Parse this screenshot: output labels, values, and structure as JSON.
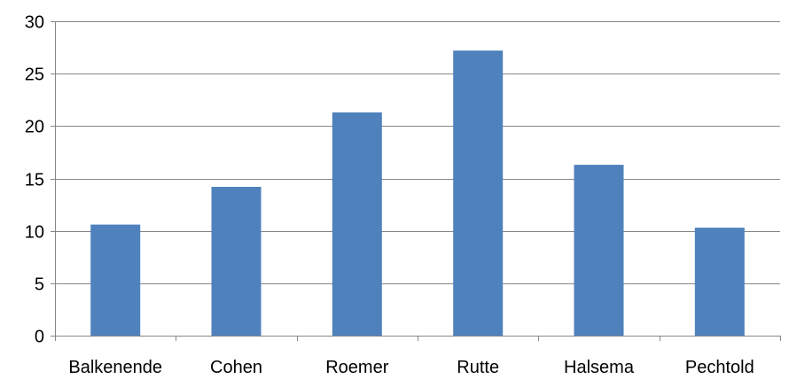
{
  "chart_data": {
    "type": "bar",
    "title": "",
    "xlabel": "",
    "ylabel": "",
    "categories": [
      "Balkenende",
      "Cohen",
      "Roemer",
      "Rutte",
      "Halsema",
      "Pechtold"
    ],
    "values": [
      10.6,
      14.2,
      21.3,
      27.2,
      16.3,
      10.3
    ],
    "ylim": [
      0,
      30
    ],
    "yticks": [
      0,
      5,
      10,
      15,
      20,
      25,
      30
    ],
    "grid": true,
    "legend": "none",
    "colors": {
      "bar": "#4F81BD",
      "grid": "#868686",
      "axis": "#868686"
    }
  }
}
